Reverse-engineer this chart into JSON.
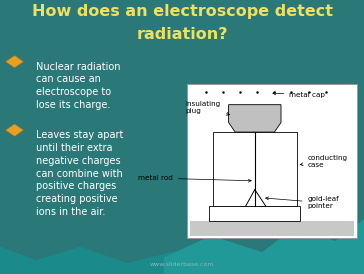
{
  "title_line1": "How does an electroscope detect",
  "title_line2": "radiation?",
  "title_color": "#f0e060",
  "title_fontsize": 11.5,
  "bg_color": "#2a7878",
  "bullet_color": "#e8a020",
  "bullet_points": [
    "Nuclear radiation\ncan cause an\nelectroscope to\nlose its charge.",
    "Leaves stay apart\nuntil their extra\nnegative charges\ncan combine with\npositive charges\ncreating positive\nions in the air."
  ],
  "text_color": "#ffffff",
  "text_fontsize": 7.0,
  "watermark": "www.sliderbase.com",
  "wave_color1": "#1e8888",
  "wave_color2": "#22a0a0"
}
